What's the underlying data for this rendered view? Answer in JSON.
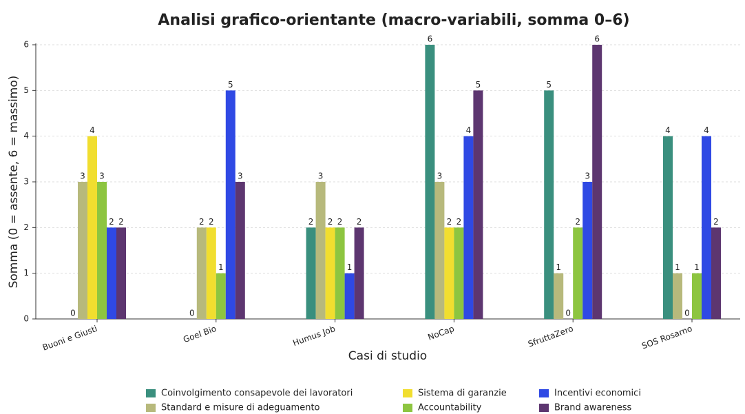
{
  "chart_data": {
    "type": "bar",
    "title": "Analisi grafico-orientante (macro-variabili, somma 0–6)",
    "x_label": "Casi di studio",
    "y_label": "Somma (0 = assente, 6 = massimo)",
    "categories": [
      "Buoni e Giusti",
      "Goel Bio",
      "Humus Job",
      "NoCap",
      "SfruttaZero",
      "SOS Rosarno"
    ],
    "series": [
      {
        "name": "Coinvolgimento consapevole dei lavoratori",
        "color": "#3a8f7e",
        "values": [
          0,
          0,
          2,
          6,
          5,
          4
        ]
      },
      {
        "name": "Standard e misure di adeguamento",
        "color": "#b7b97c",
        "values": [
          3,
          2,
          3,
          3,
          1,
          1
        ]
      },
      {
        "name": "Sistema di garanzie",
        "color": "#f1de2f",
        "values": [
          4,
          2,
          2,
          2,
          0,
          0
        ]
      },
      {
        "name": "Accountability",
        "color": "#8dc540",
        "values": [
          3,
          1,
          2,
          2,
          2,
          1
        ]
      },
      {
        "name": "Incentivi economici",
        "color": "#2f49e4",
        "values": [
          2,
          5,
          1,
          4,
          3,
          4
        ]
      },
      {
        "name": "Brand awareness",
        "color": "#5d3670",
        "values": [
          2,
          3,
          2,
          5,
          6,
          2
        ]
      }
    ],
    "ylim": [
      0,
      6
    ],
    "yticks": [
      0,
      1,
      2,
      3,
      4,
      5,
      6
    ],
    "grid": true,
    "legend": "bottom"
  }
}
